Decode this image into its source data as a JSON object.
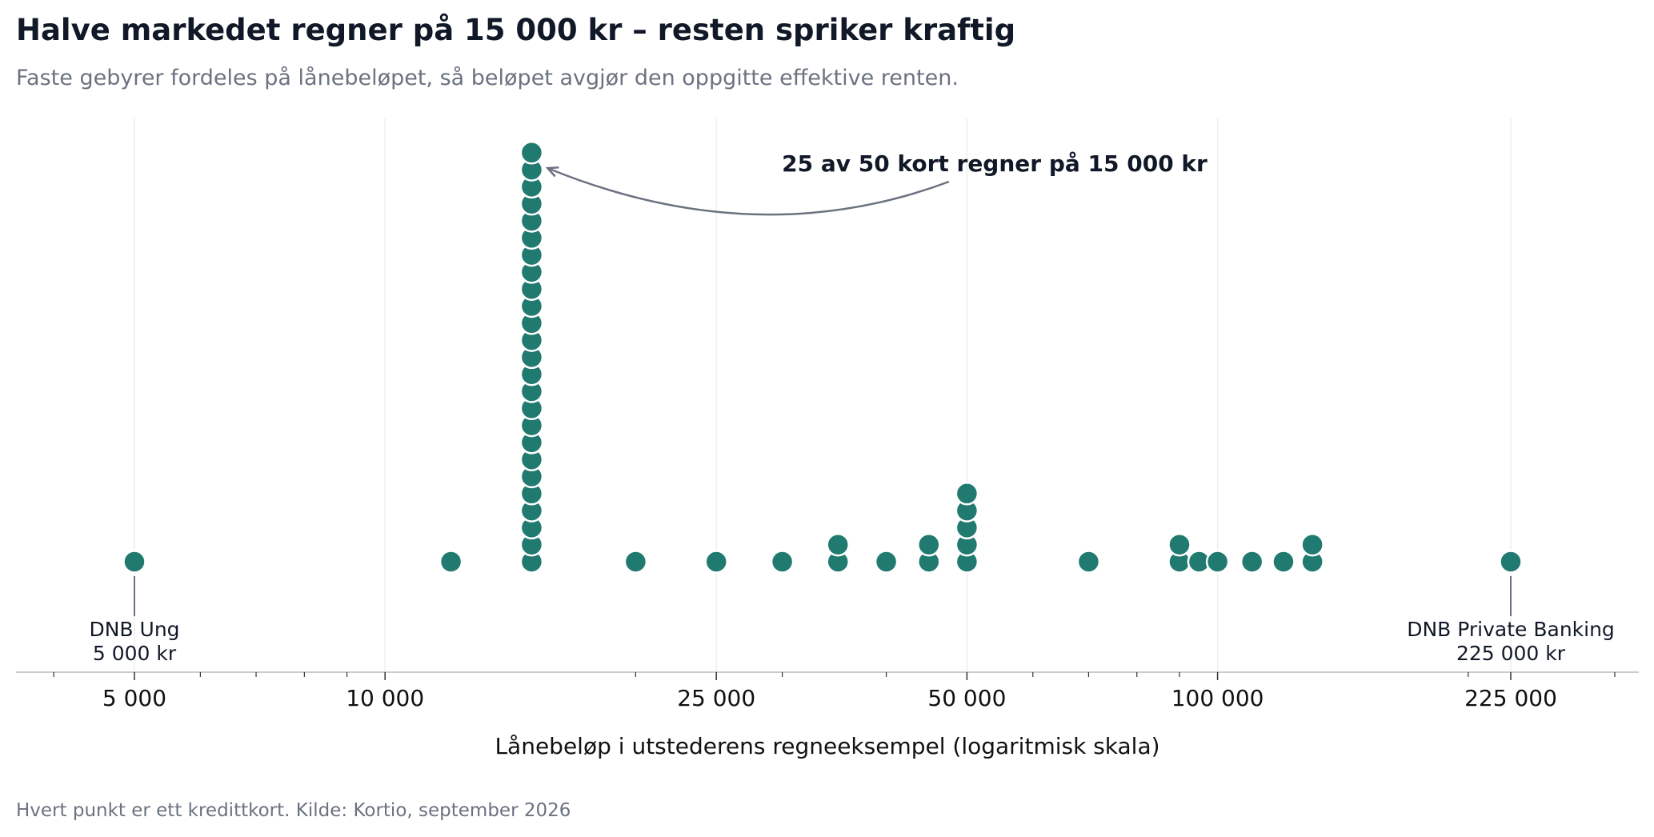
{
  "page": {
    "title": "Halve markedet regner på 15 000 kr – resten spriker kraftig",
    "subtitle": "Faste gebyrer fordeles på lånebeløpet, så beløpet avgjør den oppgitte effektive renten.",
    "footnote": "Hvert punkt er ett kredittkort. Kilde: Kortio, september 2026"
  },
  "colors": {
    "dot": "#217a70",
    "dot_stroke": "#ffffff",
    "grid": "#eeeeee",
    "axis": "#cccccc",
    "annotation_arrow": "#6b7280",
    "label_line": "#6b7280",
    "text": "#111827",
    "muted": "#6b7280"
  },
  "chart_data": {
    "type": "scatter",
    "subtype": "dot-plot",
    "xlabel": "Lånebeløp i utstederens regneeksempel (logaritmisk skala)",
    "x_scale": "log",
    "xlim": [
      4000,
      320000
    ],
    "x_ticks": [
      {
        "value": 5000,
        "label": "5 000"
      },
      {
        "value": 10000,
        "label": "10 000"
      },
      {
        "value": 25000,
        "label": "25 000"
      },
      {
        "value": 50000,
        "label": "50 000"
      },
      {
        "value": 100000,
        "label": "100 000"
      },
      {
        "value": 225000,
        "label": "225 000"
      }
    ],
    "grid": "vertical",
    "points": [
      {
        "x": 5000,
        "count": 1
      },
      {
        "x": 12000,
        "count": 1
      },
      {
        "x": 15000,
        "count": 25
      },
      {
        "x": 20000,
        "count": 1
      },
      {
        "x": 25000,
        "count": 1
      },
      {
        "x": 30000,
        "count": 1
      },
      {
        "x": 35000,
        "count": 2
      },
      {
        "x": 40000,
        "count": 1
      },
      {
        "x": 45000,
        "count": 2
      },
      {
        "x": 50000,
        "count": 5
      },
      {
        "x": 70000,
        "count": 1
      },
      {
        "x": 90000,
        "count": 2
      },
      {
        "x": 95000,
        "count": 1
      },
      {
        "x": 100000,
        "count": 1
      },
      {
        "x": 110000,
        "count": 1
      },
      {
        "x": 120000,
        "count": 1
      },
      {
        "x": 130000,
        "count": 2
      },
      {
        "x": 225000,
        "count": 1
      }
    ],
    "annotations": [
      {
        "text": "25 av 50 kort regner på 15 000 kr",
        "target_x": 15000,
        "style": "arrow"
      }
    ],
    "point_labels": [
      {
        "x": 5000,
        "lines": [
          "DNB Ung",
          "5 000 kr"
        ]
      },
      {
        "x": 225000,
        "lines": [
          "DNB Private Banking",
          "225 000 kr"
        ]
      }
    ]
  }
}
